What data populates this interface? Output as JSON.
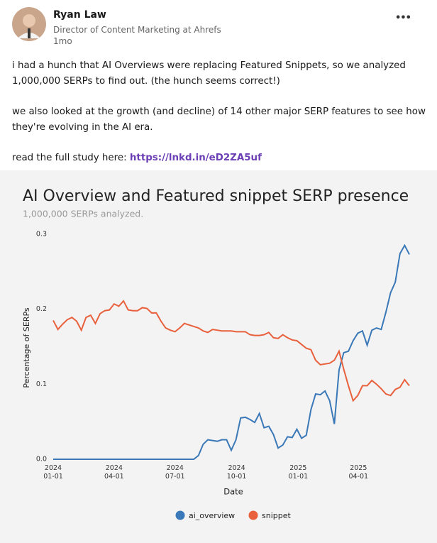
{
  "post": {
    "author": "Ryan Law",
    "headline": "Director of Content Marketing at Ahrefs",
    "age": "1mo",
    "menu": "•••",
    "paragraphs": [
      "i had a hunch that AI Overviews were replacing Featured Snippets, so we analyzed 1,000,000 SERPs to find out. (the hunch seems correct!)",
      "we also looked at the growth (and decline) of 14 other major SERP features to see how they're evolving in the AI era."
    ],
    "link_prefix": "read the full study here:",
    "link": "https://lnkd.in/eD2ZA5uf"
  },
  "chart_data": {
    "type": "line",
    "title": "AI Overview and Featured snippet SERP presence",
    "subtitle": "1,000,000 SERPs analyzed.",
    "x_label": "Date",
    "y_label": "Percentage of SERPs",
    "x": [
      "2024-01-01",
      "2024-01-08",
      "2024-01-15",
      "2024-01-22",
      "2024-01-29",
      "2024-02-05",
      "2024-02-12",
      "2024-02-19",
      "2024-02-26",
      "2024-03-04",
      "2024-03-11",
      "2024-03-18",
      "2024-03-25",
      "2024-04-01",
      "2024-04-08",
      "2024-04-15",
      "2024-04-22",
      "2024-04-29",
      "2024-05-06",
      "2024-05-13",
      "2024-05-20",
      "2024-05-27",
      "2024-06-03",
      "2024-06-10",
      "2024-06-17",
      "2024-06-24",
      "2024-07-01",
      "2024-07-08",
      "2024-07-15",
      "2024-07-22",
      "2024-07-29",
      "2024-08-05",
      "2024-08-12",
      "2024-08-19",
      "2024-08-26",
      "2024-09-02",
      "2024-09-09",
      "2024-09-16",
      "2024-09-23",
      "2024-09-30",
      "2024-10-07",
      "2024-10-14",
      "2024-10-21",
      "2024-10-28",
      "2024-11-04",
      "2024-11-11",
      "2024-11-18",
      "2024-11-25",
      "2024-12-02",
      "2024-12-09",
      "2024-12-16",
      "2024-12-23",
      "2024-12-30",
      "2025-01-06",
      "2025-01-13",
      "2025-01-20",
      "2025-01-27",
      "2025-02-03",
      "2025-02-10",
      "2025-02-17",
      "2025-02-24",
      "2025-03-03",
      "2025-03-10",
      "2025-03-17",
      "2025-03-24",
      "2025-03-31",
      "2025-04-07",
      "2025-04-14",
      "2025-04-21",
      "2025-04-28",
      "2025-05-05",
      "2025-05-12",
      "2025-05-19",
      "2025-05-26",
      "2025-06-02",
      "2025-06-09",
      "2025-06-16"
    ],
    "series": [
      {
        "name": "ai_overview",
        "color": "#3a78b8",
        "values": [
          0,
          0,
          0,
          0,
          0,
          0,
          0,
          0,
          0,
          0,
          0,
          0,
          0,
          0,
          0,
          0,
          0,
          0,
          0,
          0,
          0,
          0,
          0,
          0,
          0,
          0,
          0,
          0,
          0,
          0,
          0,
          0.005,
          0.02,
          0.026,
          0.025,
          0.024,
          0.026,
          0.026,
          0.012,
          0.026,
          0.055,
          0.056,
          0.053,
          0.049,
          0.061,
          0.042,
          0.044,
          0.033,
          0.015,
          0.019,
          0.03,
          0.029,
          0.04,
          0.028,
          0.032,
          0.066,
          0.087,
          0.086,
          0.091,
          0.078,
          0.047,
          0.119,
          0.142,
          0.144,
          0.158,
          0.168,
          0.171,
          0.152,
          0.172,
          0.175,
          0.173,
          0.196,
          0.222,
          0.236,
          0.274,
          0.285,
          0.273
        ]
      },
      {
        "name": "snippet",
        "color": "#e8603c",
        "values": [
          0.185,
          0.173,
          0.18,
          0.186,
          0.189,
          0.184,
          0.172,
          0.189,
          0.192,
          0.181,
          0.194,
          0.198,
          0.199,
          0.207,
          0.204,
          0.211,
          0.199,
          0.198,
          0.198,
          0.202,
          0.201,
          0.195,
          0.195,
          0.184,
          0.175,
          0.172,
          0.17,
          0.175,
          0.181,
          0.179,
          0.177,
          0.175,
          0.171,
          0.169,
          0.173,
          0.172,
          0.171,
          0.171,
          0.171,
          0.17,
          0.17,
          0.17,
          0.166,
          0.165,
          0.165,
          0.166,
          0.169,
          0.162,
          0.161,
          0.166,
          0.162,
          0.159,
          0.158,
          0.153,
          0.148,
          0.146,
          0.132,
          0.126,
          0.127,
          0.128,
          0.132,
          0.144,
          0.12,
          0.098,
          0.078,
          0.085,
          0.098,
          0.098,
          0.105,
          0.1,
          0.094,
          0.087,
          0.085,
          0.093,
          0.096,
          0.106,
          0.098
        ]
      }
    ],
    "xlim": [
      "2024-01-01",
      "2025-06-16"
    ],
    "xticks": [
      {
        "value": "2024-01-01",
        "label": "2024\n01-01"
      },
      {
        "value": "2024-04-01",
        "label": "2024\n04-01"
      },
      {
        "value": "2024-07-01",
        "label": "2024\n07-01"
      },
      {
        "value": "2024-10-01",
        "label": "2024\n10-01"
      },
      {
        "value": "2025-01-01",
        "label": "2025\n01-01"
      },
      {
        "value": "2025-04-01",
        "label": "2025\n04-01"
      }
    ],
    "ylim": [
      -0.008,
      0.31
    ],
    "yticks": [
      {
        "value": 0,
        "label": "0.0"
      },
      0.1,
      0.2,
      0.3
    ],
    "grid": false,
    "legend": "bottom"
  }
}
